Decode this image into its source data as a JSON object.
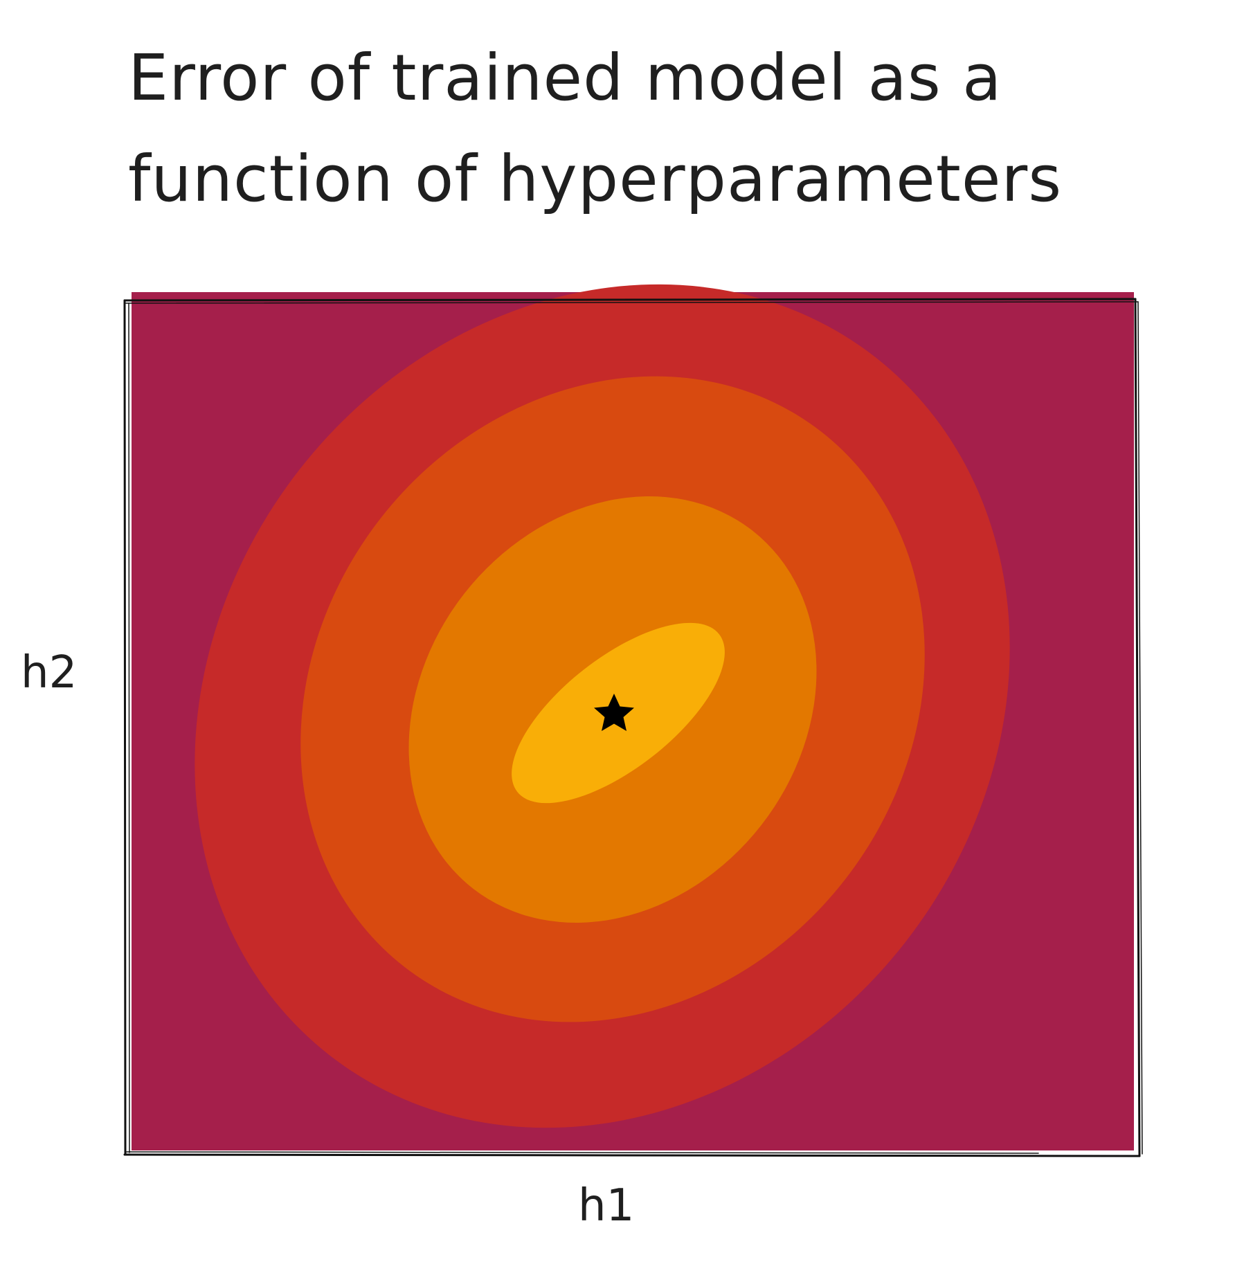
{
  "title_lines": [
    "Error of trained model as a",
    "function of hyperparameters"
  ],
  "xlabel": "h1",
  "ylabel": "h2",
  "colors": {
    "background": "#a51f4b",
    "level1": "#c62a29",
    "level2": "#d84a10",
    "level3": "#e37800",
    "level4": "#f9ae07",
    "star": "#000000",
    "frame": "#111111"
  },
  "contour_levels": [
    "level1",
    "level2",
    "level3",
    "level4"
  ],
  "marker": "star-icon"
}
